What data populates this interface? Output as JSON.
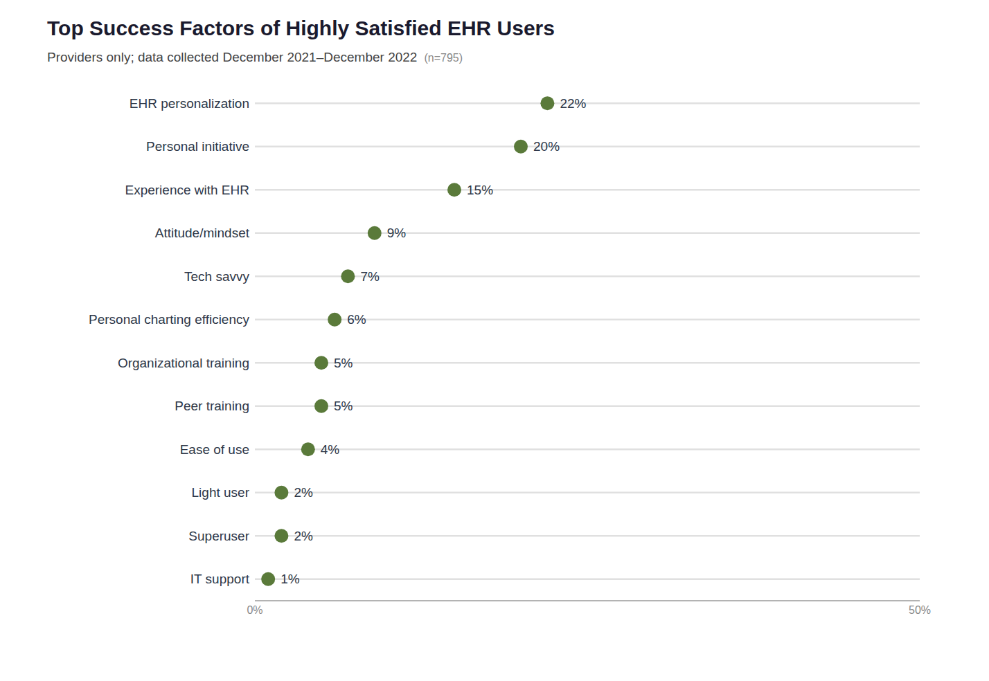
{
  "chart_data": {
    "type": "dot",
    "title": "Top Success Factors of Highly Satisfied EHR Users",
    "subtitle": "Providers only; data collected December 2021–December 2022",
    "annotations": [
      "(n=795)"
    ],
    "orientation": "horizontal",
    "categories": [
      "EHR personalization",
      "Personal initiative",
      "Experience with EHR",
      "Attitude/mindset",
      "Tech savvy",
      "Personal charting efficiency",
      "Organizational training",
      "Peer training",
      "Ease of use",
      "Light user",
      "Superuser",
      "IT support"
    ],
    "values": [
      22,
      20,
      15,
      9,
      7,
      6,
      5,
      5,
      4,
      2,
      2,
      1
    ],
    "value_labels": [
      "22%",
      "20%",
      "15%",
      "9%",
      "7%",
      "6%",
      "5%",
      "5%",
      "4%",
      "2%",
      "2%",
      "1%"
    ],
    "data_labels": true,
    "color": "#5a7a3a",
    "xlim": [
      0,
      50
    ],
    "xticks": [
      {
        "value": 0,
        "label": "0%"
      },
      {
        "value": 50,
        "label": "50%"
      }
    ],
    "grid": false
  }
}
